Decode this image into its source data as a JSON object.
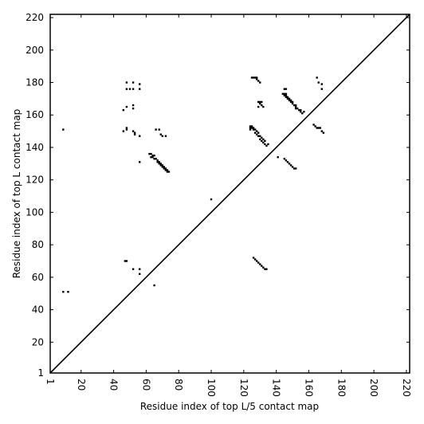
{
  "chart_data": {
    "type": "scatter",
    "title": "",
    "xlabel": "Residue index of top L/5 contact map",
    "ylabel": "Residue index of top L contact map",
    "xlim": [
      1,
      222
    ],
    "ylim": [
      1,
      222
    ],
    "x_ticks": [
      1,
      20,
      40,
      60,
      80,
      100,
      120,
      140,
      160,
      180,
      200,
      220
    ],
    "x_tick_labels": [
      "1",
      "20",
      "40",
      "60",
      "80",
      "100",
      "120",
      "140",
      "160",
      "180",
      "200",
      "220"
    ],
    "y_ticks": [
      1,
      20,
      40,
      60,
      80,
      100,
      120,
      140,
      160,
      180,
      200,
      220
    ],
    "y_tick_labels": [
      "1",
      "20",
      "40",
      "60",
      "80",
      "100",
      "120",
      "140",
      "160",
      "180",
      "200",
      "220"
    ],
    "x_tick_rotation": "vertical",
    "grid": false,
    "diagonal": [
      [
        1,
        1
      ],
      [
        222,
        222
      ]
    ],
    "marker_color": "#000000",
    "series": [
      {
        "values": [
          [
            9,
            151
          ],
          [
            9,
            51
          ],
          [
            12,
            51
          ],
          [
            48,
            180
          ],
          [
            52,
            180
          ],
          [
            56,
            179
          ],
          [
            48,
            176
          ],
          [
            50,
            176
          ],
          [
            52,
            176
          ],
          [
            56,
            176
          ],
          [
            48,
            165
          ],
          [
            52,
            166
          ],
          [
            46,
            163
          ],
          [
            52,
            164
          ],
          [
            48,
            152
          ],
          [
            48,
            151
          ],
          [
            46,
            150
          ],
          [
            52,
            150
          ],
          [
            53,
            149
          ],
          [
            53,
            148
          ],
          [
            56,
            147
          ],
          [
            56,
            131
          ],
          [
            47,
            70
          ],
          [
            48,
            70
          ],
          [
            52,
            65
          ],
          [
            56,
            65
          ],
          [
            56,
            62
          ],
          [
            65,
            55
          ],
          [
            66,
            151
          ],
          [
            68,
            151
          ],
          [
            69,
            148
          ],
          [
            70,
            147
          ],
          [
            72,
            147
          ],
          [
            62,
            136
          ],
          [
            63,
            136
          ],
          [
            64,
            135
          ],
          [
            65,
            135
          ],
          [
            63,
            134
          ],
          [
            64,
            134
          ],
          [
            65,
            133
          ],
          [
            66,
            133
          ],
          [
            67,
            132
          ],
          [
            68,
            131
          ],
          [
            67,
            131
          ],
          [
            69,
            130
          ],
          [
            68,
            130
          ],
          [
            70,
            129
          ],
          [
            69,
            129
          ],
          [
            71,
            128
          ],
          [
            70,
            128
          ],
          [
            72,
            127
          ],
          [
            71,
            127
          ],
          [
            73,
            126
          ],
          [
            72,
            126
          ],
          [
            73,
            125
          ],
          [
            74,
            125
          ],
          [
            100,
            108
          ],
          [
            125,
            183
          ],
          [
            126,
            183
          ],
          [
            127,
            183
          ],
          [
            128,
            183
          ],
          [
            128,
            182
          ],
          [
            129,
            181
          ],
          [
            130,
            180
          ],
          [
            129,
            168
          ],
          [
            130,
            168
          ],
          [
            131,
            168
          ],
          [
            130,
            167
          ],
          [
            131,
            166
          ],
          [
            129,
            165
          ],
          [
            132,
            165
          ],
          [
            124,
            153
          ],
          [
            125,
            153
          ],
          [
            124,
            152
          ],
          [
            125,
            152
          ],
          [
            126,
            152
          ],
          [
            124,
            151
          ],
          [
            126,
            151
          ],
          [
            127,
            151
          ],
          [
            128,
            150
          ],
          [
            127,
            149
          ],
          [
            129,
            149
          ],
          [
            128,
            148
          ],
          [
            130,
            147
          ],
          [
            129,
            147
          ],
          [
            131,
            146
          ],
          [
            130,
            145
          ],
          [
            132,
            145
          ],
          [
            131,
            144
          ],
          [
            133,
            144
          ],
          [
            132,
            143
          ],
          [
            133,
            142
          ],
          [
            134,
            141
          ],
          [
            135,
            142
          ],
          [
            141,
            134
          ],
          [
            126,
            72
          ],
          [
            127,
            71
          ],
          [
            128,
            70
          ],
          [
            129,
            69
          ],
          [
            130,
            68
          ],
          [
            131,
            67
          ],
          [
            132,
            66
          ],
          [
            133,
            65
          ],
          [
            134,
            65
          ],
          [
            145,
            176
          ],
          [
            146,
            176
          ],
          [
            144,
            173
          ],
          [
            145,
            173
          ],
          [
            146,
            173
          ],
          [
            145,
            172
          ],
          [
            146,
            172
          ],
          [
            147,
            171
          ],
          [
            146,
            171
          ],
          [
            148,
            170
          ],
          [
            147,
            170
          ],
          [
            149,
            169
          ],
          [
            148,
            169
          ],
          [
            150,
            168
          ],
          [
            149,
            168
          ],
          [
            150,
            167
          ],
          [
            151,
            166
          ],
          [
            152,
            166
          ],
          [
            152,
            165
          ],
          [
            153,
            164
          ],
          [
            152,
            164
          ],
          [
            154,
            163
          ],
          [
            155,
            163
          ],
          [
            155,
            162
          ],
          [
            156,
            161
          ],
          [
            157,
            162
          ],
          [
            145,
            133
          ],
          [
            146,
            132
          ],
          [
            147,
            131
          ],
          [
            148,
            130
          ],
          [
            149,
            129
          ],
          [
            150,
            128
          ],
          [
            151,
            127
          ],
          [
            152,
            127
          ],
          [
            163,
            154
          ],
          [
            164,
            153
          ],
          [
            165,
            152
          ],
          [
            166,
            152
          ],
          [
            167,
            152
          ],
          [
            168,
            150
          ],
          [
            169,
            149
          ],
          [
            165,
            183
          ],
          [
            166,
            180
          ],
          [
            168,
            179
          ],
          [
            168,
            176
          ]
        ]
      }
    ]
  }
}
